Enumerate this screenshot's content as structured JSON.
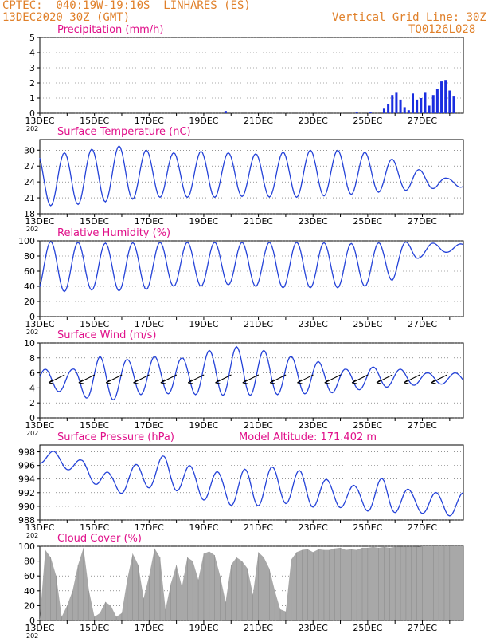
{
  "header": {
    "line1": "CPTEC:  040:19W-19:10S  LINHARES (ES)",
    "line2": "13DEC2020 30Z (GMT)",
    "grid_note": "Vertical Grid Line: 30Z",
    "code": "TQ0126L028"
  },
  "colors": {
    "header": "#e0802a",
    "panel_title": "#e0108a",
    "line": "#2442d8",
    "bar": "#1a2ee0",
    "cloud": "#a8a8a8",
    "arrow": "#000000",
    "grid": "#555555"
  },
  "date_labels": [
    "13DEC",
    "15DEC",
    "17DEC",
    "19DEC",
    "21DEC",
    "23DEC",
    "25DEC",
    "27DEC"
  ],
  "year_fragment": "202",
  "chart_data": [
    {
      "id": "precip",
      "type": "bar",
      "title": "Precipitation (mm/h)",
      "ylim": [
        0,
        5
      ],
      "yticks": [
        "0",
        "1",
        "2",
        "3",
        "4",
        "5"
      ],
      "x_start_day": 13,
      "x_end_day": 28.5,
      "series": [
        {
          "name": "",
          "x": [
            19.8,
            24.6,
            25.1,
            25.6,
            25.75,
            25.9,
            26.05,
            26.2,
            26.35,
            26.5,
            26.65,
            26.8,
            26.95,
            27.1,
            27.25,
            27.4,
            27.55,
            27.7,
            27.85,
            28.0,
            28.15
          ],
          "values": [
            0.15,
            0.05,
            0.05,
            0.3,
            0.6,
            1.2,
            1.4,
            0.9,
            0.4,
            0.2,
            1.3,
            0.9,
            1.0,
            1.4,
            0.5,
            1.2,
            1.6,
            2.1,
            2.2,
            1.5,
            1.1
          ]
        }
      ]
    },
    {
      "id": "temp",
      "type": "line",
      "title": "Surface Temperature (nC)",
      "ylim": [
        18,
        32
      ],
      "yticks": [
        "18",
        "21",
        "24",
        "27",
        "30"
      ],
      "x_start_day": 13,
      "x_end_day": 28.5,
      "series": [
        {
          "name": "",
          "days_peak": [
            13.9,
            14.9,
            15.9,
            16.9,
            17.9,
            18.9,
            19.9,
            20.9,
            21.9,
            22.9,
            23.9,
            24.9,
            25.9,
            26.9,
            27.9
          ],
          "peaks": [
            29.5,
            30.2,
            30.8,
            30.0,
            29.5,
            29.8,
            29.5,
            29.3,
            29.6,
            30.0,
            30.0,
            29.6,
            28.3,
            26.3,
            24.7
          ],
          "troughs": [
            19.5,
            20.0,
            20.5,
            21.0,
            21.2,
            21.0,
            21.2,
            21.3,
            21.0,
            21.2,
            21.5,
            21.8,
            22.3,
            22.5,
            23.0
          ]
        }
      ]
    },
    {
      "id": "rh",
      "type": "line",
      "title": "Relative Humidity (%)",
      "ylim": [
        0,
        100
      ],
      "yticks": [
        "0",
        "20",
        "40",
        "60",
        "80",
        "100"
      ],
      "x_start_day": 13,
      "x_end_day": 28.5,
      "series": [
        {
          "name": "",
          "days_min": [
            13.9,
            14.9,
            15.9,
            16.9,
            17.9,
            18.9,
            19.9,
            20.9,
            21.9,
            22.9,
            23.9,
            24.9,
            25.9,
            26.9,
            27.9
          ],
          "mins": [
            33,
            35,
            34,
            36,
            40,
            40,
            42,
            40,
            38,
            38,
            38,
            40,
            48,
            78,
            85
          ],
          "maxs": [
            99,
            97,
            97,
            98,
            98,
            98,
            98,
            98,
            98,
            98,
            97,
            96,
            99,
            98,
            96
          ]
        }
      ]
    },
    {
      "id": "wind",
      "type": "line",
      "title": "Surface Wind (m/s)",
      "ylim": [
        0,
        10
      ],
      "yticks": [
        "0",
        "2",
        "4",
        "6",
        "8",
        "10"
      ],
      "x_start_day": 13,
      "x_end_day": 28.5,
      "series": [
        {
          "name": "",
          "days_peak": [
            14.2,
            15.2,
            16.2,
            17.2,
            18.2,
            19.2,
            20.2,
            21.2,
            22.2,
            23.2,
            24.2,
            25.2,
            26.2,
            27.2,
            28.0
          ],
          "peaks": [
            6.5,
            8.2,
            7.8,
            8.2,
            8.0,
            9.0,
            9.5,
            9.0,
            8.2,
            7.5,
            6.5,
            6.8,
            6.5,
            6.0,
            6.0
          ],
          "troughs": [
            3.5,
            1.8,
            3.0,
            3.2,
            3.2,
            3.0,
            3.0,
            3.0,
            3.2,
            3.2,
            3.5,
            4.0,
            4.2,
            4.5,
            4.5
          ]
        }
      ],
      "arrows": {
        "days": [
          13.5,
          14.6,
          15.6,
          16.6,
          17.6,
          18.6,
          19.6,
          20.6,
          21.6,
          22.6,
          23.6,
          24.6,
          25.5,
          26.5,
          27.5
        ],
        "angles": [
          160,
          160,
          155,
          158,
          160,
          160,
          150,
          150,
          150,
          135,
          110,
          95,
          110,
          115,
          120
        ]
      }
    },
    {
      "id": "pressure",
      "type": "line",
      "title": "Surface Pressure (hPa)",
      "annotation": "Model Altitude: 171.402 m",
      "ylim": [
        988,
        999
      ],
      "yticks": [
        "988",
        "990",
        "992",
        "994",
        "996",
        "998"
      ],
      "x_start_day": 13,
      "x_end_day": 28.5,
      "series": [
        {
          "name": "",
          "days_peak": [
            13.5,
            14.6,
            15.6,
            16.6,
            17.6,
            18.6,
            19.6,
            20.6,
            21.6,
            22.6,
            23.6,
            24.6,
            25.6,
            26.6,
            27.6
          ],
          "peaks": [
            998.1,
            996.8,
            994.8,
            996.3,
            997.5,
            995.8,
            995.0,
            995.5,
            995.8,
            995.2,
            993.8,
            993.0,
            994.2,
            992.3,
            992.0
          ],
          "troughs": [
            996.3,
            994.5,
            991.5,
            992.5,
            993.0,
            991.2,
            990.5,
            989.6,
            990.8,
            989.8,
            990.0,
            989.5,
            989.0,
            989.2,
            988.6
          ]
        }
      ]
    },
    {
      "id": "cloud",
      "type": "area",
      "title": "Cloud Cover (%)",
      "ylim": [
        0,
        100
      ],
      "yticks": [
        "0",
        "20",
        "40",
        "60",
        "80",
        "100"
      ],
      "x_start_day": 13,
      "x_end_day": 28.5,
      "series": [
        {
          "name": "",
          "x": [
            13.0,
            13.2,
            13.4,
            13.6,
            13.8,
            14.0,
            14.2,
            14.4,
            14.6,
            14.8,
            15.0,
            15.2,
            15.4,
            15.6,
            15.8,
            16.0,
            16.2,
            16.4,
            16.6,
            16.8,
            17.0,
            17.2,
            17.4,
            17.6,
            17.8,
            18.0,
            18.2,
            18.4,
            18.6,
            18.8,
            19.0,
            19.2,
            19.4,
            19.6,
            19.8,
            20.0,
            20.2,
            20.4,
            20.6,
            20.8,
            21.0,
            21.2,
            21.4,
            21.6,
            21.8,
            22.0,
            22.2,
            22.4,
            22.6,
            22.8,
            23.0,
            23.2,
            23.4,
            23.6,
            23.8,
            24.0,
            24.2,
            24.4,
            24.6,
            24.8,
            25.0,
            25.2,
            25.4,
            25.6,
            25.8,
            26.0,
            26.2,
            26.4,
            26.6,
            26.8,
            27.0,
            27.2,
            27.4,
            27.6,
            27.8,
            28.0,
            28.2,
            28.5
          ],
          "values": [
            2,
            95,
            85,
            60,
            5,
            20,
            40,
            75,
            98,
            40,
            5,
            10,
            25,
            20,
            5,
            10,
            55,
            90,
            75,
            30,
            60,
            97,
            85,
            15,
            50,
            75,
            45,
            85,
            80,
            55,
            90,
            93,
            88,
            60,
            25,
            75,
            85,
            80,
            70,
            35,
            92,
            85,
            70,
            40,
            15,
            12,
            82,
            92,
            95,
            96,
            92,
            96,
            95,
            95,
            97,
            98,
            95,
            96,
            95,
            98,
            98,
            99,
            98,
            99,
            98,
            99,
            99,
            99,
            99,
            99,
            100,
            100,
            100,
            100,
            100,
            100,
            100,
            100
          ]
        }
      ]
    }
  ]
}
